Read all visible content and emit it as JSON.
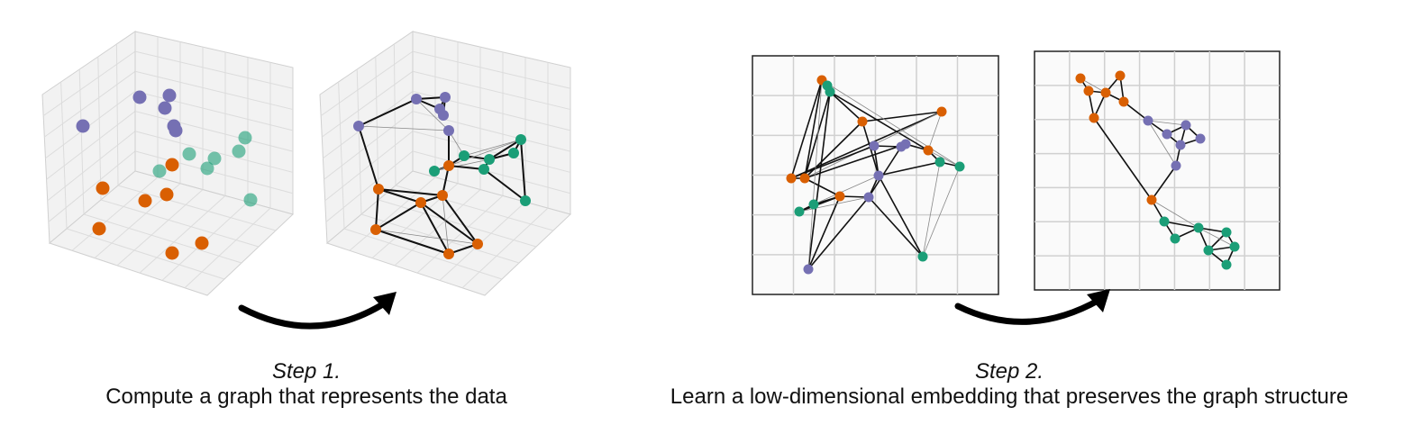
{
  "steps": [
    {
      "label": "Step 1.",
      "description": "Compute a graph that represents the data"
    },
    {
      "label": "Step 2.",
      "description": "Learn a low-dimensional embedding that preserves the graph structure"
    }
  ]
}
